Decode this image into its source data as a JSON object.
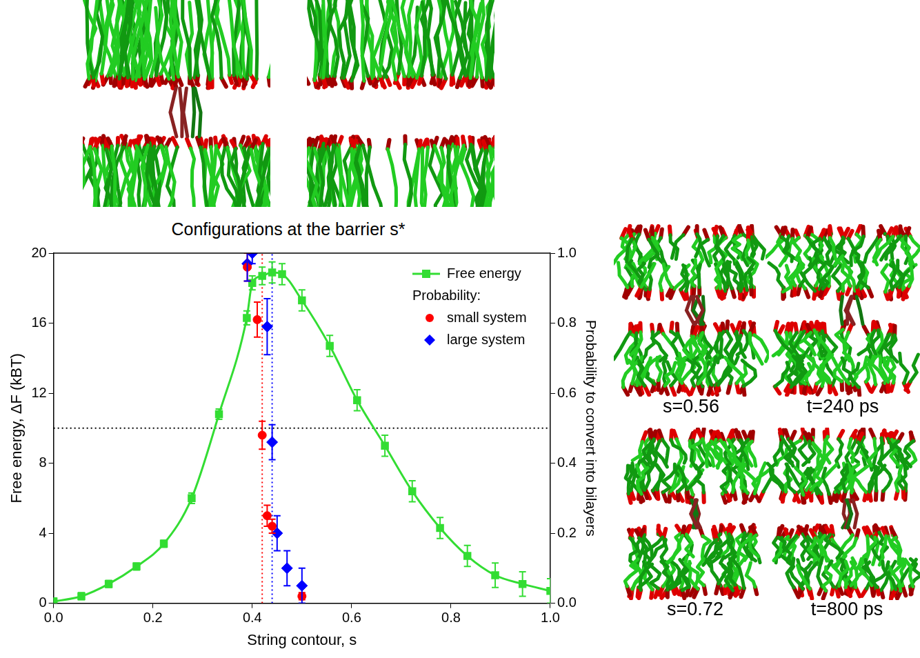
{
  "chart_data": {
    "type": "line",
    "x_label": "String contour, s",
    "y_label": "Free energy, ΔF (kBT)",
    "y2_label": "Probability to convert into bilayers",
    "xlim": [
      0,
      1
    ],
    "xticks": [
      {
        "value": 0,
        "label": "0.0"
      },
      {
        "value": 0.2,
        "label": "0.2"
      },
      {
        "value": 0.4,
        "label": "0.4"
      },
      {
        "value": 0.6,
        "label": "0.6"
      },
      {
        "value": 0.8,
        "label": "0.8"
      },
      {
        "value": 1,
        "label": "1.0"
      }
    ],
    "ylim": [
      0,
      20
    ],
    "yticks": [
      0,
      4,
      8,
      12,
      16,
      20
    ],
    "y2lim": [
      0,
      1
    ],
    "y2ticks": [
      {
        "value": 0,
        "label": "0.0"
      },
      {
        "value": 0.2,
        "label": "0.2"
      },
      {
        "value": 0.4,
        "label": "0.4"
      },
      {
        "value": 0.6,
        "label": "0.6"
      },
      {
        "value": 0.8,
        "label": "0.8"
      },
      {
        "value": 1,
        "label": "1.0"
      }
    ],
    "grid": false,
    "legend": "upper right",
    "legend_title": "Probability:",
    "series": [
      {
        "name": "Free energy",
        "type": "line",
        "color": "#33dd33",
        "marker": "square",
        "x": [
          0,
          0.056,
          0.111,
          0.167,
          0.222,
          0.278,
          0.333,
          0.389,
          0.4,
          0.42,
          0.44,
          0.46,
          0.5,
          0.556,
          0.611,
          0.667,
          0.722,
          0.778,
          0.833,
          0.889,
          0.944,
          1.0
        ],
        "values": [
          0.1,
          0.4,
          1.1,
          2.1,
          3.4,
          6.0,
          10.8,
          16.3,
          18.3,
          18.7,
          18.9,
          18.8,
          17.3,
          14.7,
          11.6,
          9.0,
          6.4,
          4.3,
          2.7,
          1.6,
          1.1,
          0.7
        ],
        "errors": [
          0.2,
          0.2,
          0.2,
          0.2,
          0.2,
          0.3,
          0.3,
          0.4,
          0.4,
          0.5,
          0.6,
          0.6,
          0.6,
          0.6,
          0.6,
          0.6,
          0.6,
          0.6,
          0.6,
          0.7,
          0.7,
          0.7
        ]
      },
      {
        "name": "small system",
        "type": "scatter",
        "axis": "y2",
        "color": "#ff0000",
        "marker": "circle",
        "x": [
          0.39,
          0.41,
          0.42,
          0.43,
          0.44,
          0.5
        ],
        "values": [
          0.96,
          0.81,
          0.48,
          0.25,
          0.22,
          0.02
        ],
        "errors": [
          0.04,
          0.05,
          0.04,
          0.03,
          0.02,
          0.01
        ]
      },
      {
        "name": "large system",
        "type": "scatter",
        "axis": "y2",
        "color": "#0000ff",
        "marker": "diamond",
        "x": [
          0.39,
          0.4,
          0.43,
          0.44,
          0.45,
          0.47,
          0.5
        ],
        "values": [
          0.97,
          1.0,
          0.79,
          0.46,
          0.2,
          0.1,
          0.05
        ],
        "errors": [
          0.05,
          0.03,
          0.08,
          0.05,
          0.05,
          0.05,
          0.05
        ]
      }
    ],
    "reference_lines": [
      {
        "axis": "y2",
        "value": 0.5,
        "color": "#000000",
        "line_style": "dotted"
      },
      {
        "axis": "x",
        "value": 0.42,
        "color": "#ff0000",
        "line_style": "dotted"
      },
      {
        "axis": "x",
        "value": 0.44,
        "color": "#0000ff",
        "line_style": "dotted"
      }
    ]
  },
  "figure": {
    "top_caption": "Configurations at the barrier s*",
    "snapshots": [
      {
        "label": "s=0.56"
      },
      {
        "label": "t=240 ps"
      },
      {
        "label": "s=0.72"
      },
      {
        "label": "t=800 ps"
      }
    ]
  }
}
